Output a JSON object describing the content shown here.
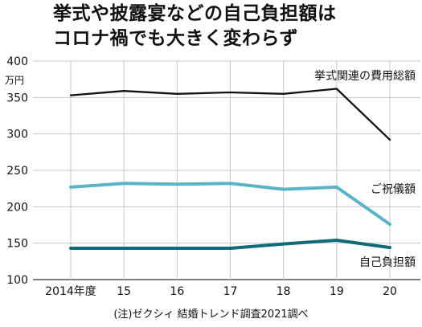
{
  "title_lines": [
    "挙式や披露宴などの自己負担額は",
    "コロナ禍でも大きく変わらず"
  ],
  "source": "(注)ゼクシィ 結婚トレンド調査2021調べ",
  "chart_data": {
    "type": "line",
    "title": "挙式や披露宴などの自己負担額は コロナ禍でも大きく変わらず",
    "ylabel": "万円",
    "xlabel": "",
    "categories": [
      "2014年度",
      "15",
      "16",
      "17",
      "18",
      "19",
      "20"
    ],
    "ylim": [
      100,
      400
    ],
    "yticks": [
      100,
      150,
      200,
      250,
      300,
      350,
      400
    ],
    "grid": true,
    "series": [
      {
        "name": "挙式関連の費用総額",
        "color": "#111111",
        "values": [
          353,
          359,
          355,
          357,
          355,
          362,
          292
        ]
      },
      {
        "name": "ご祝儀額",
        "color": "#5ab4c6",
        "values": [
          227,
          232,
          231,
          232,
          224,
          227,
          176
        ]
      },
      {
        "name": "自己負担額",
        "color": "#0f6b79",
        "values": [
          143,
          143,
          143,
          143,
          149,
          154,
          144
        ]
      }
    ]
  }
}
